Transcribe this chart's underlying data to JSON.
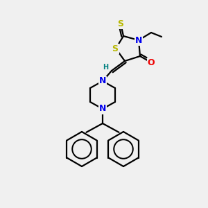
{
  "bg_color": "#f0f0f0",
  "atom_colors": {
    "S": "#b8b800",
    "N": "#0000ee",
    "O": "#ee0000",
    "C": "#000000",
    "H": "#008080"
  },
  "bond_color": "#000000",
  "bond_lw": 1.6,
  "font_size_atom": 8,
  "fig_size": [
    3.0,
    3.0
  ],
  "dpi": 100,
  "xlim": [
    0,
    300
  ],
  "ylim": [
    0,
    300
  ]
}
